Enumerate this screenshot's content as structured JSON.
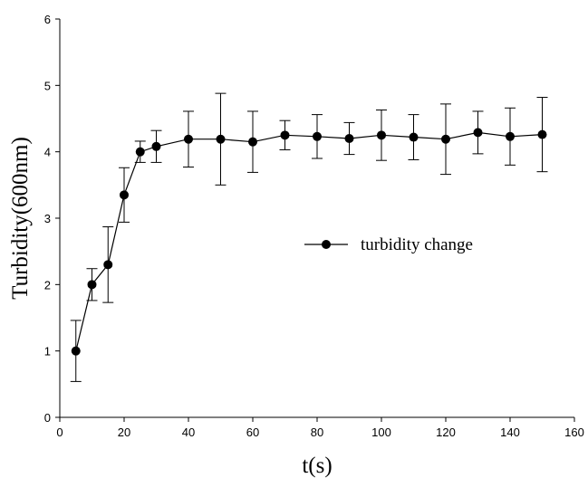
{
  "chart_data": {
    "type": "line",
    "xlabel": "t(s)",
    "ylabel": "Turbidity(600nm)",
    "xlim": [
      0,
      160
    ],
    "ylim": [
      0,
      6
    ],
    "x_ticks": [
      "0",
      "20",
      "40",
      "60",
      "80",
      "100",
      "120",
      "140",
      "160"
    ],
    "y_ticks": [
      "0",
      "1",
      "2",
      "3",
      "4",
      "5",
      "6"
    ],
    "grid": false,
    "legend_position": "center-right",
    "series": [
      {
        "name": "turbidity change",
        "color": "#000000",
        "marker": "circle",
        "x": [
          5,
          10,
          15,
          20,
          25,
          30,
          40,
          50,
          60,
          70,
          80,
          90,
          100,
          110,
          120,
          130,
          140,
          150
        ],
        "y": [
          1.0,
          2.0,
          2.3,
          3.35,
          4.0,
          4.08,
          4.19,
          4.19,
          4.15,
          4.25,
          4.23,
          4.2,
          4.25,
          4.22,
          4.19,
          4.29,
          4.23,
          4.26
        ],
        "error": [
          0.46,
          0.24,
          0.57,
          0.41,
          0.16,
          0.24,
          0.42,
          0.69,
          0.46,
          0.22,
          0.33,
          0.24,
          0.38,
          0.34,
          0.53,
          0.32,
          0.43,
          0.56
        ]
      }
    ]
  }
}
